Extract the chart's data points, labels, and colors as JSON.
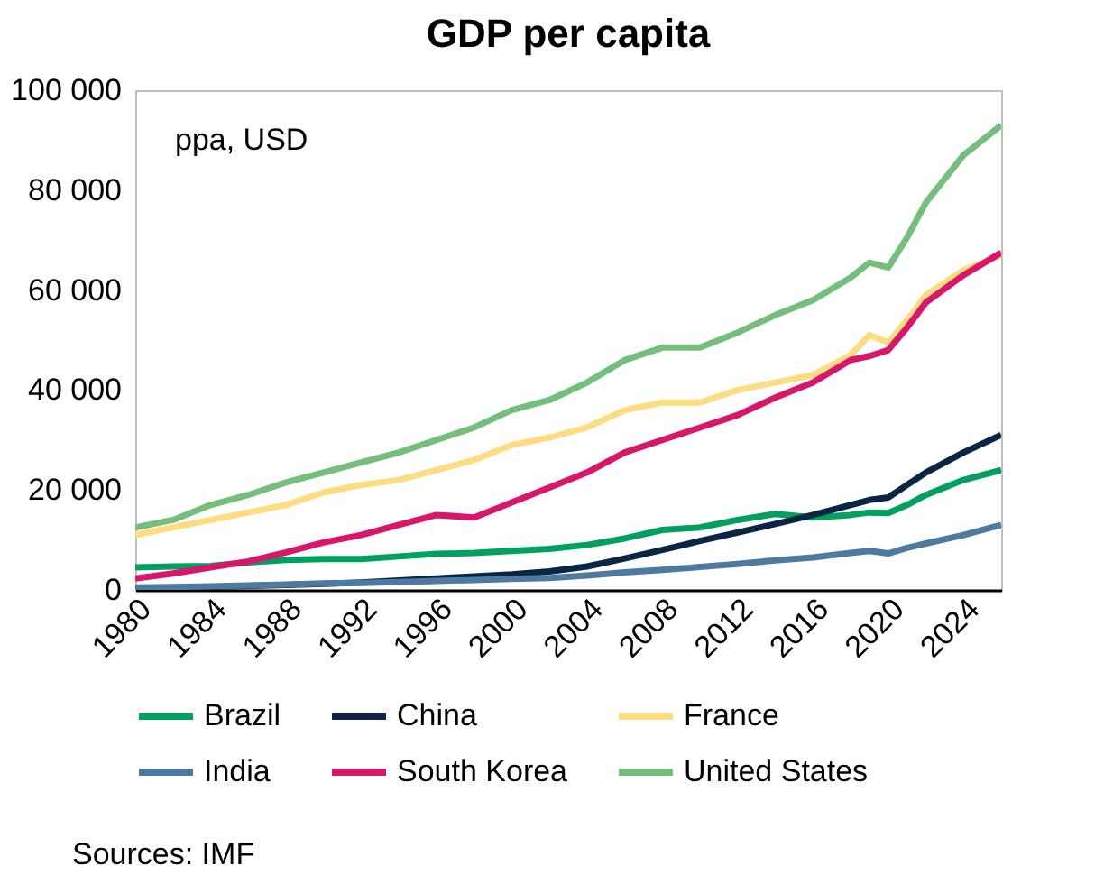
{
  "chart_data": {
    "type": "line",
    "title": "GDP per capita",
    "x": [
      1980,
      1982,
      1984,
      1986,
      1988,
      1990,
      1992,
      1994,
      1996,
      1998,
      2000,
      2002,
      2004,
      2006,
      2008,
      2010,
      2012,
      2014,
      2016,
      2018,
      2019,
      2020,
      2021,
      2022,
      2024,
      2026
    ],
    "xlim": [
      1980,
      2026
    ],
    "xticks": [
      1980,
      1984,
      1988,
      1992,
      1996,
      2000,
      2004,
      2008,
      2012,
      2016,
      2020,
      2024
    ],
    "ylim": [
      0,
      100000
    ],
    "yticks": [
      0,
      {
        "value": 20000,
        "label": "20 000"
      },
      {
        "value": 40000,
        "label": "40 000"
      },
      {
        "value": 60000,
        "label": "60 000"
      },
      {
        "value": 80000,
        "label": "80 000"
      },
      {
        "value": 100000,
        "label": "100 000"
      }
    ],
    "series": [
      {
        "name": "Brazil",
        "color": "#00a060",
        "values": [
          4500,
          4700,
          4800,
          5500,
          6000,
          6200,
          6200,
          6700,
          7200,
          7400,
          7800,
          8200,
          9000,
          10300,
          12000,
          12500,
          14000,
          15200,
          14500,
          15000,
          15500,
          15400,
          17000,
          19000,
          22000,
          24000
        ]
      },
      {
        "name": "China",
        "color": "#0b2545",
        "values": [
          300,
          400,
          600,
          800,
          1000,
          1200,
          1500,
          1900,
          2300,
          2700,
          3100,
          3700,
          4700,
          6300,
          8000,
          9800,
          11500,
          13200,
          15000,
          17000,
          18000,
          18500,
          21000,
          23500,
          27500,
          31000
        ]
      },
      {
        "name": "France",
        "color": "#fddc82",
        "values": [
          11000,
          12500,
          14000,
          15500,
          17000,
          19500,
          21000,
          22000,
          24000,
          26000,
          29000,
          30500,
          32500,
          36000,
          37500,
          37500,
          40000,
          41500,
          43000,
          47000,
          51000,
          49500,
          54000,
          59000,
          64000,
          67000
        ]
      },
      {
        "name": "India",
        "color": "#4e7aa0",
        "values": [
          500,
          600,
          700,
          900,
          1100,
          1300,
          1400,
          1600,
          1800,
          2000,
          2200,
          2400,
          2900,
          3500,
          4000,
          4600,
          5200,
          5900,
          6500,
          7400,
          7800,
          7300,
          8400,
          9300,
          11000,
          13000
        ]
      },
      {
        "name": "South Korea",
        "color": "#d6176b",
        "values": [
          2300,
          3300,
          4500,
          5700,
          7500,
          9500,
          11000,
          13000,
          15000,
          14500,
          17500,
          20500,
          23500,
          27500,
          30000,
          32500,
          35000,
          38500,
          41500,
          46000,
          46800,
          48000,
          52500,
          57500,
          63000,
          67500
        ]
      },
      {
        "name": "United States",
        "color": "#74bf7c",
        "values": [
          12500,
          14000,
          17000,
          19000,
          21500,
          23500,
          25500,
          27500,
          30000,
          32500,
          36000,
          38000,
          41500,
          46000,
          48500,
          48500,
          51500,
          55000,
          58000,
          62500,
          65500,
          64500,
          70500,
          77500,
          87000,
          93000
        ]
      }
    ],
    "legend": "bottom",
    "grid": false,
    "annotations": [
      "ppa, USD",
      "Sources: IMF"
    ]
  }
}
